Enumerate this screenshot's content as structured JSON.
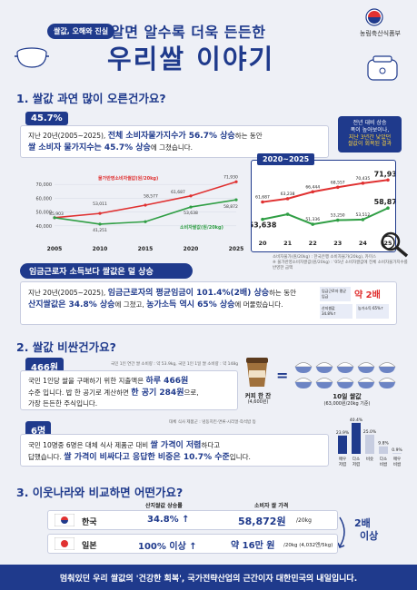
{
  "header": {
    "tag": "쌀값, 오해와 진실",
    "title_line1": "알면 알수록 더욱 든든한",
    "title_line2": "우리쌀 이야기",
    "ministry": "농림축산식품부"
  },
  "section1": {
    "title": "1. 쌀값 과연 많이 오른건가요?",
    "pill": "45.7%",
    "text_a": "지난 20년(2005~2025), ",
    "text_b": "전체 소비자물가지수가 56.7% 상승",
    "text_c": "하는 동안",
    "text_d": "쌀 소비자 물가지수는 45.7% 상승",
    "text_e": "에 그쳤습니다.",
    "bubble_1": "전년 대비 상승",
    "bubble_2": "폭이 높아보이나,",
    "bubble_3": "지난 3년간 낮았던",
    "bubble_4": "쌀값이 회복된 결과",
    "zoom_title": "2020~2025",
    "source_1": "소비자물가(원/20kg) : 한국은행 소비자물가(20kg), 카미스",
    "source_2": "※ 물가반영소비자쌀값(원/20kg) : '05년 소비자쌀값에 전체 소비자물가지수를 반영한 금액",
    "banner": "임금근로자 소득보다 쌀값은 덜 상승",
    "income_a": "지난 20년(2005~2025), ",
    "income_b": "임금근로자의 평균임금이 101.4%(2배) 상승",
    "income_c": "하는 동안",
    "income_d": "산지쌀값은 34.8% 상승",
    "income_e": "에 그쳤고, ",
    "income_f": "농가소득 역시 65% 상승",
    "income_g": "에 머물렀습니다.",
    "badge_2x": "약 2배",
    "badge_small1": "임금근로자 평균임금",
    "badge_small2": "산지쌀값 34.8%↑",
    "badge_small3": "농가소득 65%↑"
  },
  "chart_data": [
    {
      "type": "line",
      "x": [
        2005,
        2010,
        2015,
        2020,
        2025
      ],
      "series": [
        {
          "name": "물가반영소비자쌀값(원/20kg)",
          "values": [
            45903,
            49000,
            55000,
            61687,
            71930
          ]
        },
        {
          "name": "소비자쌀값(원/20kg)",
          "values": [
            45903,
            41251,
            43000,
            53638,
            58872
          ]
        }
      ],
      "ylim": [
        0,
        70000
      ],
      "yticks": [
        0,
        10000,
        20000,
        30000,
        40000,
        50000,
        60000,
        70000
      ],
      "labels": [
        "45,903",
        "41,251",
        "53,011",
        "58,577",
        "61,687",
        "53,638",
        "71,930",
        "58,872"
      ]
    },
    {
      "type": "line",
      "x": [
        "20",
        "21",
        "22",
        "23",
        "24",
        "25"
      ],
      "series": [
        {
          "name": "물가반영소비자쌀값",
          "values": [
            61687,
            63238,
            66444,
            68557,
            70435,
            71930
          ]
        },
        {
          "name": "소비자쌀값",
          "values": [
            53638,
            56000,
            51336,
            53250,
            53512,
            58872
          ]
        }
      ],
      "labels": [
        "61,687",
        "63,238",
        "66,444",
        "68,557",
        "70,435",
        "71,930",
        "53,638",
        "51,336",
        "53,250",
        "53,512",
        "58,872"
      ]
    },
    {
      "type": "bar",
      "categories": [
        "매우저렴",
        "다소저렴",
        "비슷",
        "다소비쌈",
        "매우비쌈"
      ],
      "values": [
        23.9,
        40.4,
        25.0,
        9.8,
        0.9
      ],
      "labels": [
        "23.9%",
        "40.4%",
        "25.0%",
        "9.8%",
        "0.9%"
      ]
    }
  ],
  "section2": {
    "title": "2. 쌀값 비싼건가요?",
    "pill": "466원",
    "source": "국민 1인 연간 쌀 소비량 : 약 53.9kg, 국민 1인 1일 쌀 소비량 : 약 148g",
    "text_a": "국민 1인당 쌀을 구매하기 위한 지출액은 ",
    "text_b": "하루 466원",
    "text_c": "수준 입니다. 밥 한 공기로 계산하면 ",
    "text_d": "한 공기 284원",
    "text_e": "으로,",
    "text_f": "가장 든든한 주식입니다.",
    "coffee_label": "커피 한 잔",
    "coffee_price": "(4,600원)",
    "eq": "=",
    "rice_label": "10일 쌀값",
    "rice_price": "(63,000원/20kg 기준)",
    "pill2": "6명",
    "survey_src": "대체 식사 제품군 : 냉동치킨·면류·시리얼·즉석밥 등",
    "text2_a": "국민 10명중 6명은 대체 식사 제품군 대비 ",
    "text2_b": "쌀 가격이 저렴",
    "text2_c": "하다고",
    "text2_d": "답했습니다. ",
    "text2_e": "쌀 가격이 비싸다고 응답한 비중은 10.7% 수준",
    "text2_f": "입니다."
  },
  "section3": {
    "title": "3. 이웃나라와 비교하면 어떤가요?",
    "col1": "산지쌀값 상승률",
    "col2": "소비자 쌀 가격",
    "korea": "한국",
    "japan": "일본",
    "korea_rate": "34.8% ↑",
    "japan_rate": "100% 이상 ↑",
    "korea_price": "58,872원",
    "korea_unit": "/20kg",
    "japan_price": "약 16만 원",
    "japan_unit": "/20kg (4,032엔/5kg)",
    "compare": "2배",
    "compare2": "이상"
  },
  "footer": {
    "text": "멈춰있던 우리 쌀값의 '건강한 회복', 국가전략산업의 근간이자 대한민국의 내일입니다."
  },
  "colors": {
    "primary": "#1f3a8c",
    "red": "#e03131",
    "green": "#2f9e44",
    "yellow": "#ffd43b"
  }
}
